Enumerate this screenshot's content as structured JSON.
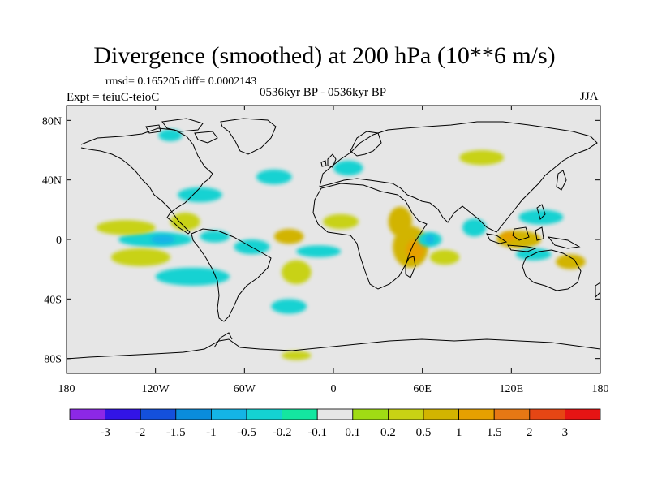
{
  "title": "Divergence (smoothed) at 200 hPa (10**6 m/s)",
  "stats_line": "rmsd= 0.165205 diff= 0.0002143",
  "experiment": "Expt = teiuC-teioC",
  "period": "0536kyr BP - 0536kyr BP",
  "season": "JJA",
  "colors": {
    "land_ocean_background": "#e6e6e6",
    "coastline": "#000000"
  },
  "map": {
    "projection": "cylindrical equidistant",
    "lon_range": [
      -180,
      180
    ],
    "lat_range": [
      -90,
      90
    ],
    "y_ticks": [
      {
        "lat": 80,
        "label": "80N"
      },
      {
        "lat": 40,
        "label": "40N"
      },
      {
        "lat": 0,
        "label": "0"
      },
      {
        "lat": -40,
        "label": "40S"
      },
      {
        "lat": -80,
        "label": "80S"
      }
    ],
    "x_ticks": [
      {
        "lon": -180,
        "label": "180"
      },
      {
        "lon": -120,
        "label": "120W"
      },
      {
        "lon": -60,
        "label": "60W"
      },
      {
        "lon": 0,
        "label": "0"
      },
      {
        "lon": 60,
        "label": "60E"
      },
      {
        "lon": 120,
        "label": "120E"
      },
      {
        "lon": 180,
        "label": "180"
      }
    ]
  },
  "colorbar": {
    "colors": [
      "#8c28e6",
      "#3214e6",
      "#1450dc",
      "#0a8cdc",
      "#14b4e6",
      "#14d2d2",
      "#14e6a0",
      "#e6e6e6",
      "#a0dc14",
      "#c8d214",
      "#d2b400",
      "#e6a000",
      "#e67814",
      "#e64614",
      "#e61414"
    ],
    "labels": [
      "-3",
      "-2",
      "-1.5",
      "-1",
      "-0.5",
      "-0.2",
      "-0.1",
      "0.1",
      "0.2",
      "0.5",
      "1",
      "1.5",
      "2",
      "3"
    ]
  },
  "chart_data": {
    "type": "heatmap",
    "title": "Divergence (smoothed) at 200 hPa (10**6 m/s)",
    "variable": "Divergence (smoothed)",
    "level": "200 hPa",
    "units": "10**6 m/s",
    "levels": [
      -3,
      -2,
      -1.5,
      -1,
      -0.5,
      -0.2,
      -0.1,
      0.1,
      0.2,
      0.5,
      1,
      1.5,
      2,
      3
    ],
    "xlim": [
      -180,
      180
    ],
    "ylim": [
      -90,
      90
    ],
    "features": [
      {
        "name": "arabian-sea-positive",
        "lon": 52,
        "lat": -5,
        "dlon": 12,
        "dlat": 14,
        "level": 0.5
      },
      {
        "name": "arabian-sea-core",
        "lon": 55,
        "lat": -7,
        "dlon": 6,
        "dlat": 7,
        "level": 1
      },
      {
        "name": "east-africa-positive",
        "lon": 45,
        "lat": 12,
        "dlon": 8,
        "dlat": 10,
        "level": 0.5
      },
      {
        "name": "indian-ocean-negative",
        "lon": 65,
        "lat": 0,
        "dlon": 8,
        "dlat": 5,
        "level": -0.5
      },
      {
        "name": "indian-ocean-core",
        "lon": 65,
        "lat": 0,
        "dlon": 3,
        "dlat": 3,
        "level": -1
      },
      {
        "name": "south-indian-ocean-positive",
        "lon": 75,
        "lat": -12,
        "dlon": 10,
        "dlat": 5,
        "level": 0.2
      },
      {
        "name": "equatorial-pacific-west-negative",
        "lon": -120,
        "lat": 0,
        "dlon": 25,
        "dlat": 5,
        "level": -0.5
      },
      {
        "name": "equatorial-pacific-core",
        "lon": -115,
        "lat": 0,
        "dlon": 8,
        "dlat": 3,
        "level": -1
      },
      {
        "name": "east-pacific-negative",
        "lon": -80,
        "lat": 2,
        "dlon": 10,
        "dlat": 4,
        "level": -0.5
      },
      {
        "name": "south-america-negative",
        "lon": -55,
        "lat": -5,
        "dlon": 12,
        "dlat": 5,
        "level": -0.5
      },
      {
        "name": "pacific-band-positive",
        "lon": -140,
        "lat": 8,
        "dlon": 20,
        "dlat": 5,
        "level": 0.2
      },
      {
        "name": "central-pacific-positive",
        "lon": -100,
        "lat": 12,
        "dlon": 10,
        "dlat": 6,
        "level": 0.2
      },
      {
        "name": "south-pacific-positive",
        "lon": -130,
        "lat": -12,
        "dlon": 20,
        "dlat": 6,
        "level": 0.2
      },
      {
        "name": "south-pacific-negative",
        "lon": -95,
        "lat": -25,
        "dlon": 25,
        "dlat": 6,
        "level": -0.5
      },
      {
        "name": "south-atlantic-positive",
        "lon": -25,
        "lat": -22,
        "dlon": 10,
        "dlat": 8,
        "level": 0.2
      },
      {
        "name": "atlantic-positive",
        "lon": -30,
        "lat": 2,
        "dlon": 10,
        "dlat": 5,
        "level": 0.5
      },
      {
        "name": "gulf-of-guinea-negative",
        "lon": -10,
        "lat": -8,
        "dlon": 15,
        "dlat": 4,
        "level": -0.5
      },
      {
        "name": "west-africa-positive",
        "lon": 5,
        "lat": 12,
        "dlon": 12,
        "dlat": 5,
        "level": 0.2
      },
      {
        "name": "maritime-continent-positive",
        "lon": 125,
        "lat": 0,
        "dlon": 15,
        "dlat": 6,
        "level": 0.5
      },
      {
        "name": "maritime-continent-core",
        "lon": 118,
        "lat": 2,
        "dlon": 5,
        "dlat": 3,
        "level": 1
      },
      {
        "name": "west-pacific-negative",
        "lon": 135,
        "lat": -10,
        "dlon": 12,
        "dlat": 4,
        "level": -0.5
      },
      {
        "name": "west-pacific-positive",
        "lon": 160,
        "lat": -15,
        "dlon": 10,
        "dlat": 5,
        "level": 0.5
      },
      {
        "name": "north-west-pacific-negative",
        "lon": 140,
        "lat": 15,
        "dlon": 15,
        "dlat": 5,
        "level": -0.5
      },
      {
        "name": "bay-of-bengal-negative",
        "lon": 95,
        "lat": 8,
        "dlon": 8,
        "dlat": 6,
        "level": -0.5
      },
      {
        "name": "north-america-negative",
        "lon": -90,
        "lat": 30,
        "dlon": 15,
        "dlat": 5,
        "level": -0.5
      },
      {
        "name": "north-atlantic-negative",
        "lon": -40,
        "lat": 42,
        "dlon": 12,
        "dlat": 5,
        "level": -0.5
      },
      {
        "name": "europe-negative",
        "lon": 10,
        "lat": 48,
        "dlon": 10,
        "dlat": 5,
        "level": -0.5
      },
      {
        "name": "siberia-positive",
        "lon": 100,
        "lat": 55,
        "dlon": 15,
        "dlat": 5,
        "level": 0.2
      },
      {
        "name": "arctic-negative",
        "lon": -110,
        "lat": 70,
        "dlon": 8,
        "dlat": 4,
        "level": -0.5
      },
      {
        "name": "southern-ocean-negative",
        "lon": -30,
        "lat": -45,
        "dlon": 12,
        "dlat": 5,
        "level": -0.5
      },
      {
        "name": "antarctic-positive",
        "lon": -25,
        "lat": -78,
        "dlon": 10,
        "dlat": 3,
        "level": 0.2
      }
    ]
  }
}
